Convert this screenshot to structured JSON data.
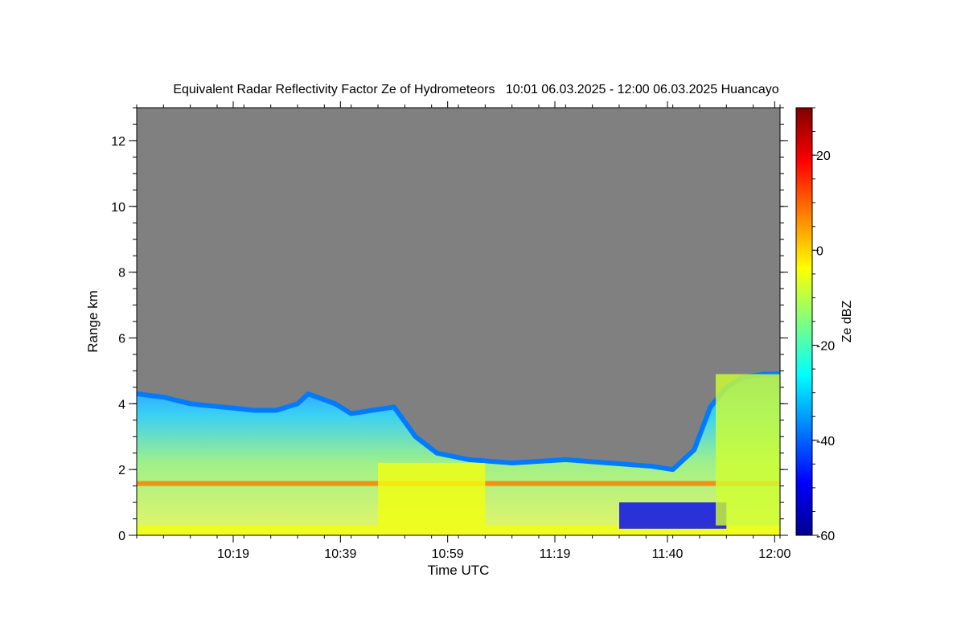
{
  "chart_data": {
    "type": "heatmap",
    "title": "Equivalent Radar Reflectivity Factor Ze of Hydrometeors   10:01 06.03.2025 - 12:00 06.03.2025 Huancayo",
    "xlabel": "Time UTC",
    "ylabel": "Range km",
    "x_tick_labels": [
      "10:19",
      "10:39",
      "10:59",
      "11:19",
      "11:40",
      "12:00"
    ],
    "x_tick_minutes": [
      18,
      38,
      58,
      78,
      99,
      119
    ],
    "x_range_minutes": [
      0,
      120
    ],
    "y_ticks": [
      0,
      2,
      4,
      6,
      8,
      10,
      12
    ],
    "ylim": [
      0,
      13
    ],
    "no_data_color": "#808080",
    "colorbar": {
      "label": "Ze dBZ",
      "range": [
        -60,
        30
      ],
      "ticks": [
        20,
        0,
        -20,
        -40,
        -60
      ],
      "colormap": "jet"
    },
    "cloud_top_km": {
      "t_min": [
        0,
        5,
        10,
        16,
        22,
        26,
        30,
        32,
        37,
        40,
        48,
        52,
        56,
        62,
        70,
        80,
        88,
        96,
        100,
        104,
        107,
        110,
        113,
        117,
        120
      ],
      "km": [
        4.3,
        4.2,
        4.0,
        3.9,
        3.8,
        3.8,
        4.0,
        4.3,
        4.0,
        3.7,
        3.9,
        3.0,
        2.5,
        2.3,
        2.2,
        2.3,
        2.2,
        2.1,
        2.0,
        2.6,
        3.9,
        4.5,
        4.8,
        4.9,
        4.9
      ]
    },
    "reflectivity_layers": [
      {
        "feature": "surface layer",
        "range_km": [
          0.0,
          0.3
        ],
        "ze_dbz": -5
      },
      {
        "feature": "melting band",
        "range_km": [
          1.5,
          1.65
        ],
        "ze_dbz": 8
      },
      {
        "feature": "precipitation streaks",
        "t_min": [
          45,
          65
        ],
        "ze_dbz": -5
      },
      {
        "feature": "weak echo region",
        "t_min": [
          90,
          110
        ],
        "range_km": [
          0.2,
          1.0
        ],
        "ze_dbz": -50
      },
      {
        "feature": "convective cell",
        "t_min": [
          108,
          120
        ],
        "range_km": [
          0.3,
          4.9
        ],
        "ze_dbz": -8
      }
    ]
  }
}
